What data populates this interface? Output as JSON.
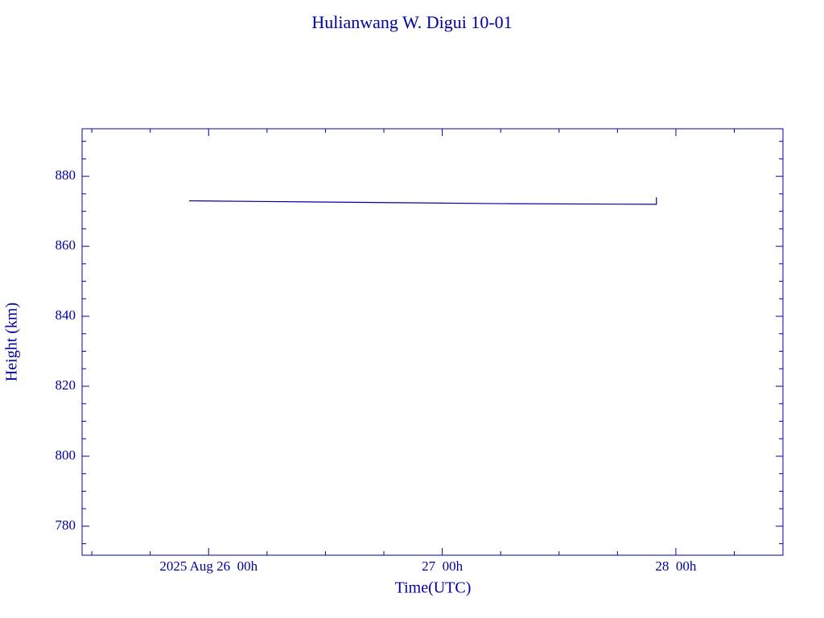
{
  "chart_data": {
    "type": "line",
    "title": "Hulianwang W. Digui 10-01",
    "xlabel": "Time(UTC)",
    "ylabel": "Height (km)",
    "x": [
      "2025-08-25T22",
      "2025-08-26T06",
      "2025-08-26T18",
      "2025-08-27T06",
      "2025-08-27T22",
      "2025-08-27T22"
    ],
    "series": [
      {
        "name": "Height",
        "color": "#0000a0",
        "values": [
          873.0,
          872.8,
          872.5,
          872.2,
          872.0,
          874.0
        ]
      }
    ],
    "xlim": [
      "2025-08-25T11",
      "2025-08-28T11"
    ],
    "xticks": [
      {
        "value": "2025-08-26T00",
        "label": "2025 Aug 26  00h"
      },
      {
        "value": "2025-08-27T00",
        "label": "27  00h"
      },
      {
        "value": "2025-08-28T00",
        "label": "28  00h"
      }
    ],
    "x_minor_ticks": [
      "2025-08-25T12",
      "2025-08-25T18",
      "2025-08-26T06",
      "2025-08-26T12",
      "2025-08-26T18",
      "2025-08-27T06",
      "2025-08-27T12",
      "2025-08-27T18",
      "2025-08-28T06"
    ],
    "ylim": [
      771.7,
      893.6
    ],
    "yticks": [
      780,
      800,
      820,
      840,
      860,
      880
    ],
    "y_minor_ticks": [
      775,
      785,
      790,
      795,
      805,
      810,
      815,
      825,
      830,
      835,
      845,
      850,
      855,
      865,
      870,
      875,
      885,
      890
    ],
    "color": "#0000a0"
  }
}
